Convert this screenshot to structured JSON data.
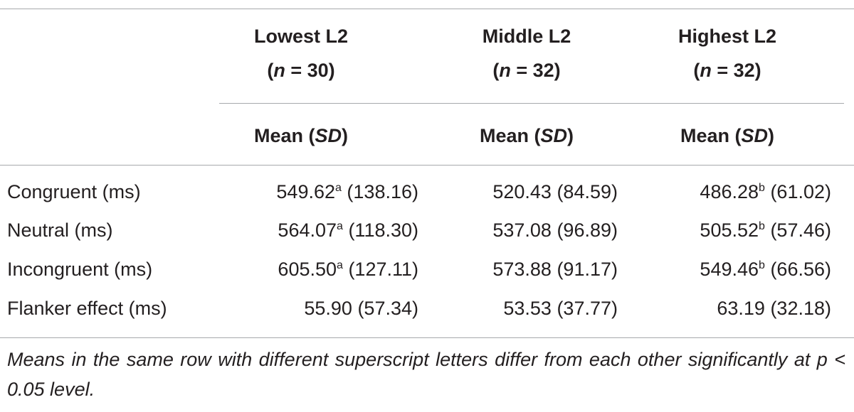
{
  "table": {
    "column_groups": [
      {
        "name": "Lowest L2",
        "n": [
          "(",
          "n",
          " = 30)"
        ],
        "stat": [
          "Mean (",
          "SD",
          ")"
        ]
      },
      {
        "name": "Middle L2",
        "n": [
          "(",
          "n",
          " = 32)"
        ],
        "stat": [
          "Mean (",
          "SD",
          ")"
        ]
      },
      {
        "name": "Highest L2",
        "n": [
          "(",
          "n",
          " = 32)"
        ],
        "stat": [
          "Mean (",
          "SD",
          ")"
        ]
      }
    ],
    "rows": [
      {
        "label": "Congruent (ms)",
        "cells": [
          {
            "mean": "549.62",
            "sup": "a",
            "sd": "(138.16)"
          },
          {
            "mean": "520.43",
            "sd": "(84.59)"
          },
          {
            "mean": "486.28",
            "sup": "b",
            "sd": "(61.02)"
          }
        ]
      },
      {
        "label": "Neutral (ms)",
        "cells": [
          {
            "mean": "564.07",
            "sup": "a",
            "sd": "(118.30)"
          },
          {
            "mean": "537.08",
            "sd": "(96.89)"
          },
          {
            "mean": "505.52",
            "sup": "b",
            "sd": "(57.46)"
          }
        ]
      },
      {
        "label": "Incongruent (ms)",
        "cells": [
          {
            "mean": "605.50",
            "sup": "a",
            "sd": "(127.11)"
          },
          {
            "mean": "573.88",
            "sd": "(91.17)"
          },
          {
            "mean": "549.46",
            "sup": "b",
            "sd": "(66.56)"
          }
        ]
      },
      {
        "label": "Flanker effect (ms)",
        "cells": [
          {
            "mean": "55.90",
            "sd": "(57.34)"
          },
          {
            "mean": "53.53",
            "sd": "(37.77)"
          },
          {
            "mean": "63.19",
            "sd": "(32.18)"
          }
        ]
      }
    ]
  },
  "note": "Means in the same row with different superscript letters differ from each other significantly at p < 0.05 level."
}
